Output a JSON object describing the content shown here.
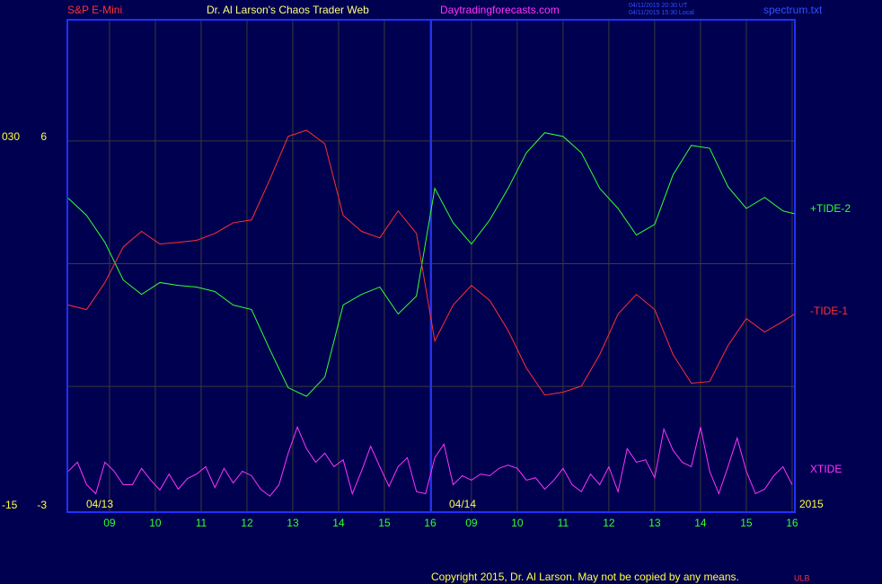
{
  "header": {
    "instrument": "S&P E-Mini",
    "title": "Dr. Al Larson's Chaos Trader Web",
    "site": "Daytradingforecasts.com",
    "timestamps": [
      "04/11/2015 20:30 UT",
      "04/11/2015 15:30 Local"
    ],
    "file": "spectrum.txt"
  },
  "footer": {
    "copyright": "Copyright 2015, Dr. Al Larson. May not be copied by any means.",
    "mark": "ULB"
  },
  "chart_data": {
    "type": "line",
    "date_labels": [
      "04/13",
      "04/14",
      "2015"
    ],
    "xlim": [
      8.08,
      23.96
    ],
    "xticks": [
      {
        "value": 9,
        "label": "09"
      },
      10,
      11,
      12,
      13,
      14,
      15,
      16,
      {
        "value": 16.9,
        "label": "09"
      },
      {
        "value": 17.9,
        "label": "10"
      },
      {
        "value": 18.9,
        "label": "11"
      },
      {
        "value": 19.9,
        "label": "12"
      },
      {
        "value": 20.9,
        "label": "13"
      },
      {
        "value": 21.9,
        "label": "14"
      },
      {
        "value": 22.9,
        "label": "15"
      },
      {
        "value": 23.9,
        "label": "16"
      }
    ],
    "ylim": [
      -3.07,
      8.96
    ],
    "yticks": [
      -3,
      6
    ],
    "ygrid": [
      0,
      3,
      6
    ],
    "y2lim": [
      -15.33,
      44.8
    ],
    "y2ticks": [
      -15,
      {
        "value": 30,
        "label": "030"
      }
    ],
    "series": [
      {
        "name": "+TIDE-2",
        "color": "#33ff33",
        "x": [
          8.1,
          8.5,
          8.9,
          9.3,
          9.7,
          10.1,
          10.5,
          10.9,
          11.3,
          11.7,
          12.1,
          12.5,
          12.9,
          13.3,
          13.7,
          14.1,
          14.5,
          14.9,
          15.3,
          15.7,
          16.1,
          16.5,
          16.9,
          17.3,
          17.7,
          18.1,
          18.5,
          18.9,
          19.3,
          19.7,
          20.1,
          20.5,
          20.9,
          21.3,
          21.7,
          22.1,
          22.5,
          22.9,
          23.3,
          23.7,
          23.95
        ],
        "values": [
          4.6,
          4.18,
          3.52,
          2.6,
          2.25,
          2.54,
          2.47,
          2.43,
          2.32,
          1.99,
          1.88,
          0.9,
          -0.03,
          -0.24,
          0.23,
          1.99,
          2.25,
          2.43,
          1.77,
          2.21,
          4.84,
          4.0,
          3.48,
          4.07,
          4.84,
          5.71,
          6.2,
          6.11,
          5.71,
          4.84,
          4.35,
          3.7,
          3.96,
          5.17,
          5.89,
          5.82,
          4.88,
          4.35,
          4.62,
          4.29,
          4.22
        ]
      },
      {
        "name": "-TIDE-1",
        "color": "#ff3030",
        "x": [
          8.1,
          8.5,
          8.9,
          9.3,
          9.7,
          10.1,
          10.5,
          10.9,
          11.3,
          11.7,
          12.1,
          12.5,
          12.9,
          13.3,
          13.7,
          14.1,
          14.5,
          14.9,
          15.3,
          15.7,
          16.1,
          16.5,
          16.9,
          17.3,
          17.7,
          18.1,
          18.5,
          18.9,
          19.3,
          19.7,
          20.1,
          20.5,
          20.9,
          21.3,
          21.7,
          22.1,
          22.5,
          22.9,
          23.3,
          23.7,
          23.95
        ],
        "values": [
          1.99,
          1.88,
          2.54,
          3.41,
          3.79,
          3.48,
          3.52,
          3.57,
          3.74,
          4.0,
          4.07,
          5.06,
          6.11,
          6.26,
          5.93,
          4.18,
          3.79,
          3.63,
          4.29,
          3.74,
          1.11,
          1.99,
          2.47,
          2.1,
          1.37,
          0.45,
          -0.21,
          -0.14,
          0.01,
          0.78,
          1.77,
          2.25,
          1.88,
          0.78,
          0.08,
          0.12,
          1.0,
          1.66,
          1.33,
          1.59,
          1.77
        ]
      },
      {
        "name": "XTIDE",
        "color": "#ff33ff",
        "x": [
          8.1,
          8.3,
          8.5,
          8.7,
          8.9,
          9.1,
          9.3,
          9.5,
          9.7,
          9.9,
          10.1,
          10.3,
          10.5,
          10.7,
          10.9,
          11.1,
          11.3,
          11.5,
          11.7,
          11.9,
          12.1,
          12.3,
          12.5,
          12.7,
          12.9,
          13.1,
          13.3,
          13.5,
          13.7,
          13.9,
          14.1,
          14.3,
          14.5,
          14.7,
          14.9,
          15.1,
          15.3,
          15.5,
          15.7,
          15.9,
          16.1,
          16.3,
          16.5,
          16.7,
          16.9,
          17.1,
          17.3,
          17.5,
          17.7,
          17.9,
          18.1,
          18.3,
          18.5,
          18.7,
          18.9,
          19.1,
          19.3,
          19.5,
          19.7,
          19.9,
          20.1,
          20.3,
          20.5,
          20.7,
          20.9,
          21.1,
          21.3,
          21.5,
          21.7,
          21.9,
          22.1,
          22.3,
          22.5,
          22.7,
          22.9,
          23.1,
          23.3,
          23.5,
          23.7,
          23.9
        ],
        "values": [
          -2.07,
          -1.85,
          -2.4,
          -2.62,
          -1.85,
          -2.07,
          -2.4,
          -2.4,
          -2.0,
          -2.29,
          -2.53,
          -2.14,
          -2.51,
          -2.25,
          -2.14,
          -1.96,
          -2.47,
          -2.0,
          -2.36,
          -2.07,
          -2.18,
          -2.51,
          -2.68,
          -2.4,
          -1.63,
          -0.99,
          -1.52,
          -1.85,
          -1.63,
          -1.96,
          -1.79,
          -2.62,
          -2.07,
          -1.46,
          -1.96,
          -2.44,
          -1.96,
          -1.74,
          -2.57,
          -2.62,
          -1.74,
          -1.41,
          -2.4,
          -2.18,
          -2.29,
          -2.14,
          -2.18,
          -2.0,
          -1.92,
          -2.0,
          -2.29,
          -2.23,
          -2.51,
          -2.29,
          -2.0,
          -2.4,
          -2.57,
          -2.14,
          -2.4,
          -1.96,
          -2.57,
          -1.52,
          -1.85,
          -1.79,
          -2.23,
          -1.04,
          -1.56,
          -1.85,
          -1.96,
          -0.99,
          -2.07,
          -2.62,
          -1.96,
          -1.26,
          -2.07,
          -2.62,
          -2.51,
          -2.18,
          -1.96,
          -2.4
        ]
      }
    ]
  }
}
